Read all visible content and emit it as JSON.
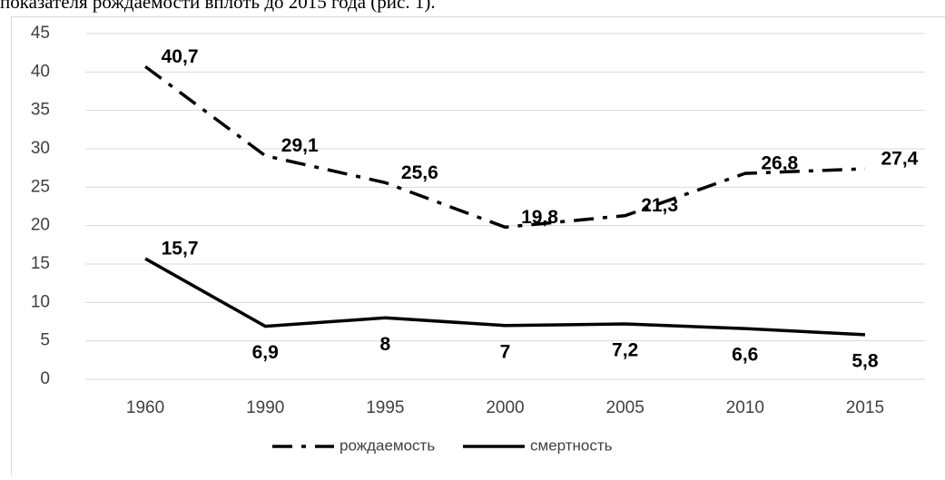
{
  "text_above": "показателя рождаемости вплоть до 2015 года (рис. 1).",
  "chart_data": {
    "type": "line",
    "categories": [
      "1960",
      "1990",
      "1995",
      "2000",
      "2005",
      "2010",
      "2015"
    ],
    "series": [
      {
        "name": "рождаемость",
        "color": "#000000",
        "dash": "dashdot",
        "values": [
          40.7,
          29.1,
          25.6,
          19.8,
          21.3,
          26.8,
          27.4
        ],
        "value_labels": [
          "40,7",
          "29,1",
          "25,6",
          "19,8",
          "21,3",
          "26,8",
          "27,4"
        ]
      },
      {
        "name": "смертность",
        "color": "#000000",
        "dash": "solid",
        "values": [
          15.7,
          6.9,
          8,
          7,
          7.2,
          6.6,
          5.8
        ],
        "value_labels": [
          "15,7",
          "6,9",
          "8",
          "7",
          "7,2",
          "6,6",
          "5,8"
        ]
      }
    ],
    "ylim": [
      0,
      45
    ],
    "yticks": [
      0,
      5,
      10,
      15,
      20,
      25,
      30,
      35,
      40,
      45
    ],
    "grid": true,
    "legend": "bottom"
  }
}
